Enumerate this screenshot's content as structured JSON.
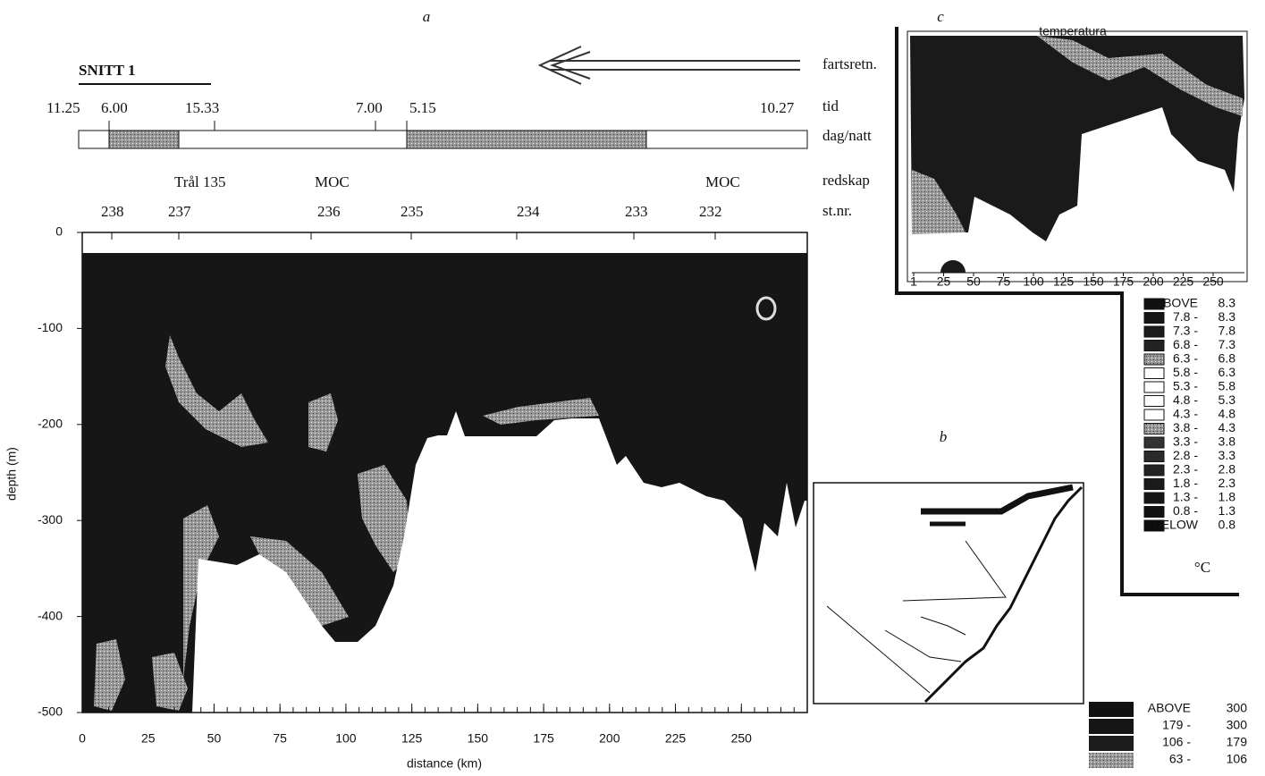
{
  "panel_a": {
    "label": "a",
    "title": "SNITT 1",
    "side_labels": [
      "fartsretn.",
      "tid",
      "dag/natt",
      "redskap",
      "st.nr."
    ],
    "times": [
      "11.25",
      "6.00",
      "15.33",
      "7.00",
      "5.15",
      "10.27"
    ],
    "gear": [
      "Trål 135",
      "MOC",
      "MOC"
    ],
    "stations": [
      "238",
      "237",
      "236",
      "235",
      "234",
      "233",
      "232"
    ],
    "x_label": "distance (km)",
    "y_label": "depth (m)",
    "xlim": [
      0,
      275
    ],
    "ylim": [
      -500,
      0
    ],
    "xticks": [
      0,
      25,
      50,
      75,
      100,
      125,
      150,
      175,
      200,
      225,
      250
    ],
    "yticks": [
      0,
      -100,
      -200,
      -300,
      -400,
      -500
    ]
  },
  "panel_b": {
    "label": "b"
  },
  "panel_c": {
    "label": "c",
    "inner_title": "temperatura",
    "ticks": [
      "1",
      "25",
      "50",
      "75",
      "100",
      "125",
      "150",
      "175",
      "200",
      "225",
      "250"
    ],
    "legend": [
      [
        "ABOVE",
        "8.3"
      ],
      [
        "7.8 -",
        "8.3"
      ],
      [
        "7.3 -",
        "7.8"
      ],
      [
        "6.8 -",
        "7.3"
      ],
      [
        "6.3 -",
        "6.8"
      ],
      [
        "5.8 -",
        "6.3"
      ],
      [
        "5.3 -",
        "5.8"
      ],
      [
        "4.8 -",
        "5.3"
      ],
      [
        "4.3 -",
        "4.8"
      ],
      [
        "3.8 -",
        "4.3"
      ],
      [
        "3.3 -",
        "3.8"
      ],
      [
        "2.8 -",
        "3.3"
      ],
      [
        "2.3 -",
        "2.8"
      ],
      [
        "1.8 -",
        "2.3"
      ],
      [
        "1.3 -",
        "1.8"
      ],
      [
        "0.8 -",
        "1.3"
      ],
      [
        "BELOW",
        "0.8"
      ]
    ],
    "unit": "°C"
  },
  "legend": [
    [
      "ABOVE",
      "300"
    ],
    [
      "179 -",
      "300"
    ],
    [
      "106 -",
      "179"
    ],
    [
      "63 -",
      "106"
    ]
  ]
}
